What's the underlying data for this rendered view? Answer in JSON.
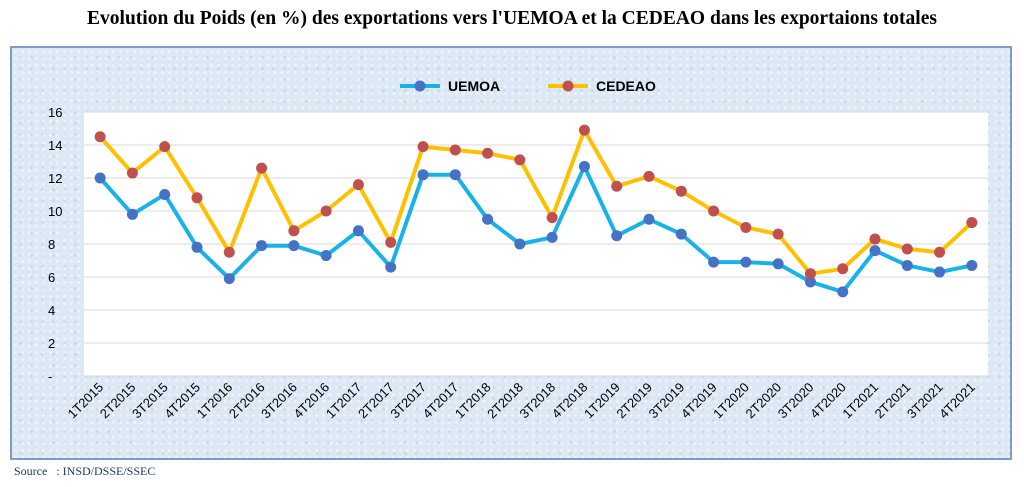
{
  "title": "Evolution du Poids (en %) des exportations vers l'UEMOA et la CEDEAO dans les exportaions totales",
  "source": "Source   : INSD/DSSE/SSEC",
  "chart_data": {
    "type": "line",
    "categories": [
      "1T2015",
      "2T2015",
      "3T2015",
      "4T2015",
      "1T2016",
      "2T2016",
      "3T2016",
      "4T2016",
      "1T2017",
      "2T2017",
      "3T2017",
      "4T2017",
      "1T2018",
      "2T2018",
      "3T2018",
      "4T2018",
      "1T2019",
      "2T2019",
      "3T2019",
      "4T2019",
      "1T2020",
      "2T2020",
      "3T2020",
      "4T2020",
      "1T2021",
      "2T2021",
      "3T2021",
      "4T2021"
    ],
    "series": [
      {
        "name": "UEMOA",
        "line_color": "#19b2e8",
        "marker_color": "#4472c4",
        "values": [
          12.0,
          9.8,
          11.0,
          7.8,
          5.9,
          7.9,
          7.9,
          7.3,
          8.8,
          6.6,
          12.2,
          12.2,
          9.5,
          8.0,
          8.4,
          12.7,
          8.5,
          9.5,
          8.6,
          6.9,
          6.9,
          6.8,
          5.7,
          5.1,
          7.6,
          6.7,
          6.3,
          6.7
        ]
      },
      {
        "name": "CEDEAO",
        "line_color": "#ffc000",
        "marker_color": "#c0504d",
        "values": [
          14.5,
          12.3,
          13.9,
          10.8,
          7.5,
          12.6,
          8.8,
          10.0,
          11.6,
          8.1,
          13.9,
          13.7,
          13.5,
          13.1,
          9.6,
          14.9,
          11.5,
          12.1,
          11.2,
          10.0,
          9.0,
          8.6,
          6.2,
          6.5,
          8.3,
          7.7,
          7.5,
          9.3
        ]
      }
    ],
    "yticks": [
      "-",
      "2",
      "4",
      "6",
      "8",
      "10",
      "12",
      "14",
      "16"
    ],
    "ylim": [
      0,
      16
    ],
    "grid": true,
    "legend_position": "top-center"
  }
}
